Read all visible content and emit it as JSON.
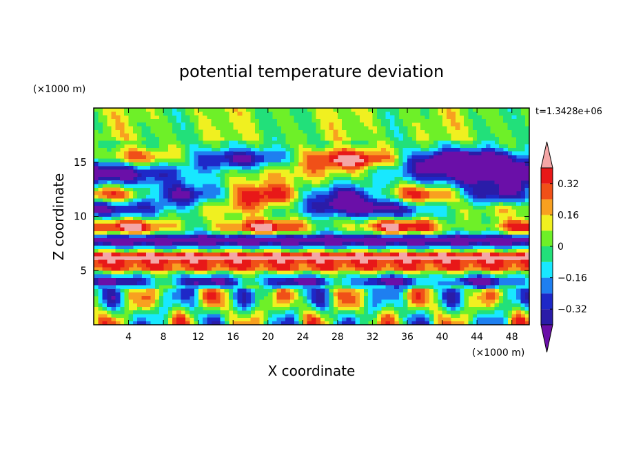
{
  "chart_data": {
    "type": "heatmap",
    "title": "potential temperature deviation",
    "time_label": "t=1.3428e+06",
    "xlabel": "X coordinate",
    "ylabel": "Z coordinate",
    "x_unit": "(×1000 m)",
    "y_unit": "(×1000 m)",
    "xlim": [
      0,
      50
    ],
    "ylim": [
      0,
      20
    ],
    "x_ticks": [
      4,
      8,
      12,
      16,
      20,
      24,
      28,
      32,
      36,
      40,
      44,
      48
    ],
    "y_ticks": [
      5,
      10,
      15
    ],
    "colorbar": {
      "levels": [
        -0.4,
        -0.32,
        -0.24,
        -0.16,
        -0.08,
        0,
        0.08,
        0.16,
        0.24,
        0.32,
        0.4
      ],
      "labels": [
        "0.32",
        "0.16",
        "0",
        "−0.16",
        "−0.32"
      ],
      "label_values": [
        0.32,
        0.16,
        0,
        -0.16,
        -0.32
      ],
      "colors": [
        "#6a0fa8",
        "#2a1ca8",
        "#1e28c8",
        "#1e7ff0",
        "#18e8ff",
        "#22e07a",
        "#6ef028",
        "#f0f020",
        "#f8a020",
        "#f05018",
        "#e81818",
        "#f4a6a6"
      ],
      "extend": "both"
    }
  }
}
